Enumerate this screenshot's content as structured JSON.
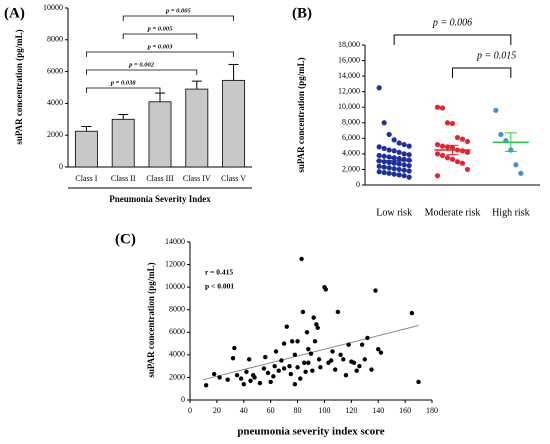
{
  "chart_data": [
    {
      "type": "bar",
      "panel_label": "(A)",
      "ylabel": "suPAR concentration (pg/mL)",
      "xlabel": "Pneumonia Severity Index",
      "categories": [
        "Class I",
        "Class II",
        "Class III",
        "Class IV",
        "Class V"
      ],
      "values": [
        2250,
        3000,
        4100,
        4900,
        5450
      ],
      "errors": [
        300,
        300,
        550,
        500,
        1000
      ],
      "color": "#c8c8c8",
      "ylim": [
        0,
        10000
      ],
      "yticks": [
        0,
        2000,
        4000,
        6000,
        8000,
        10000
      ],
      "annotations": [
        {
          "label": "p = 0.005",
          "from": "Class II",
          "to": "Class V"
        },
        {
          "label": "p = 0.005",
          "from": "Class II",
          "to": "Class IV"
        },
        {
          "label": "p = 0.003",
          "from": "Class I",
          "to": "Class V"
        },
        {
          "label": "p = 0.002",
          "from": "Class I",
          "to": "Class IV"
        },
        {
          "label": "p = 0.038",
          "from": "Class I",
          "to": "Class III"
        }
      ]
    },
    {
      "type": "strip",
      "panel_label": "(B)",
      "ylabel": "suPAR concentration (pg/mL)",
      "series": [
        {
          "name": "Low risk",
          "color": "#1f2f9e",
          "mean_color": "#1f2f9e",
          "mean": 3100,
          "sem": 300,
          "values": [
            12500,
            8000,
            6500,
            5800,
            5400,
            5200,
            5000,
            4900,
            4700,
            4500,
            4400,
            4200,
            4000,
            3900,
            3800,
            3700,
            3600,
            3500,
            3400,
            3300,
            3200,
            3100,
            3000,
            2900,
            2800,
            2700,
            2600,
            2500,
            2400,
            2300,
            2200,
            2100,
            2000,
            1900,
            1800,
            1700,
            1600,
            1500,
            1400,
            1300,
            1200,
            1000
          ]
        },
        {
          "name": "Moderate risk",
          "color": "#e8232a",
          "mean_color": "#e8232a",
          "mean": 4500,
          "sem": 600,
          "values": [
            10000,
            9900,
            8000,
            7900,
            6100,
            5900,
            5600,
            5200,
            5000,
            4900,
            4800,
            4500,
            4400,
            4200,
            4000,
            3800,
            3500,
            3300,
            3000,
            2800,
            2000,
            1200
          ]
        },
        {
          "name": "High risk",
          "color": "#4a8fd0",
          "mean_color": "#22cc44",
          "mean": 5500,
          "sem": 1200,
          "values": [
            9600,
            6500,
            5700,
            4500,
            2600,
            1500
          ]
        }
      ],
      "ylim": [
        0,
        18000
      ],
      "yticks": [
        0,
        {
          "value": 2000,
          "label": "2,000"
        },
        {
          "value": 4000,
          "label": "4,000"
        },
        {
          "value": 6000,
          "label": "6,000"
        },
        {
          "value": 8000,
          "label": "8,000"
        },
        {
          "value": 10000,
          "label": "10,000"
        },
        {
          "value": 12000,
          "label": "12,000"
        },
        {
          "value": 14000,
          "label": "14,000"
        },
        {
          "value": 16000,
          "label": "16,000"
        },
        {
          "value": 18000,
          "label": "18,000"
        }
      ],
      "annotations": [
        {
          "label": "p = 0.006",
          "from": "Low risk",
          "to": "High risk"
        },
        {
          "label": "p = 0.015",
          "from": "Moderate risk",
          "to": "High risk"
        }
      ]
    },
    {
      "type": "scatter",
      "panel_label": "(C)",
      "ylabel": "suPAR concentration (pg/mL)",
      "xlabel": "pneumonia severity index score",
      "color": "#000000",
      "x": [
        12,
        18,
        22,
        28,
        32,
        33,
        35,
        38,
        40,
        42,
        44,
        45,
        47,
        48,
        52,
        55,
        56,
        58,
        60,
        62,
        63,
        64,
        66,
        68,
        70,
        70,
        72,
        74,
        75,
        76,
        78,
        78,
        80,
        80,
        82,
        83,
        84,
        85,
        86,
        87,
        88,
        88,
        90,
        91,
        92,
        93,
        94,
        95,
        96,
        97,
        100,
        101,
        103,
        105,
        106,
        108,
        110,
        112,
        114,
        116,
        118,
        120,
        122,
        124,
        126,
        128,
        130,
        132,
        135,
        138,
        140,
        142,
        165,
        170
      ],
      "y": [
        1300,
        2300,
        2000,
        1800,
        3700,
        4600,
        2200,
        1900,
        1400,
        2500,
        3600,
        1700,
        2200,
        2000,
        1500,
        2800,
        3800,
        2400,
        1600,
        2100,
        3000,
        4300,
        2600,
        3500,
        2800,
        5000,
        6500,
        3000,
        2300,
        5200,
        4000,
        1400,
        2900,
        5200,
        1900,
        12500,
        7800,
        3300,
        2500,
        6000,
        4500,
        3300,
        4100,
        2600,
        7300,
        5200,
        6700,
        6400,
        3600,
        2900,
        10000,
        9800,
        3300,
        3500,
        4300,
        2700,
        7800,
        4000,
        3600,
        2200,
        4900,
        3400,
        3300,
        2600,
        3000,
        4900,
        3600,
        5500,
        2700,
        9700,
        4500,
        4200,
        7700,
        1600
      ],
      "fit": {
        "x": [
          10,
          170
        ],
        "y": [
          1800,
          6600
        ],
        "color": "#888888"
      },
      "xlim": [
        0,
        180
      ],
      "xticks": [
        0,
        20,
        40,
        60,
        80,
        100,
        120,
        140,
        160,
        180
      ],
      "ylim": [
        0,
        14000
      ],
      "yticks": [
        0,
        2000,
        4000,
        6000,
        8000,
        10000,
        12000,
        14000
      ],
      "annotations": [
        "r = 0.415",
        "p < 0.001"
      ]
    }
  ]
}
